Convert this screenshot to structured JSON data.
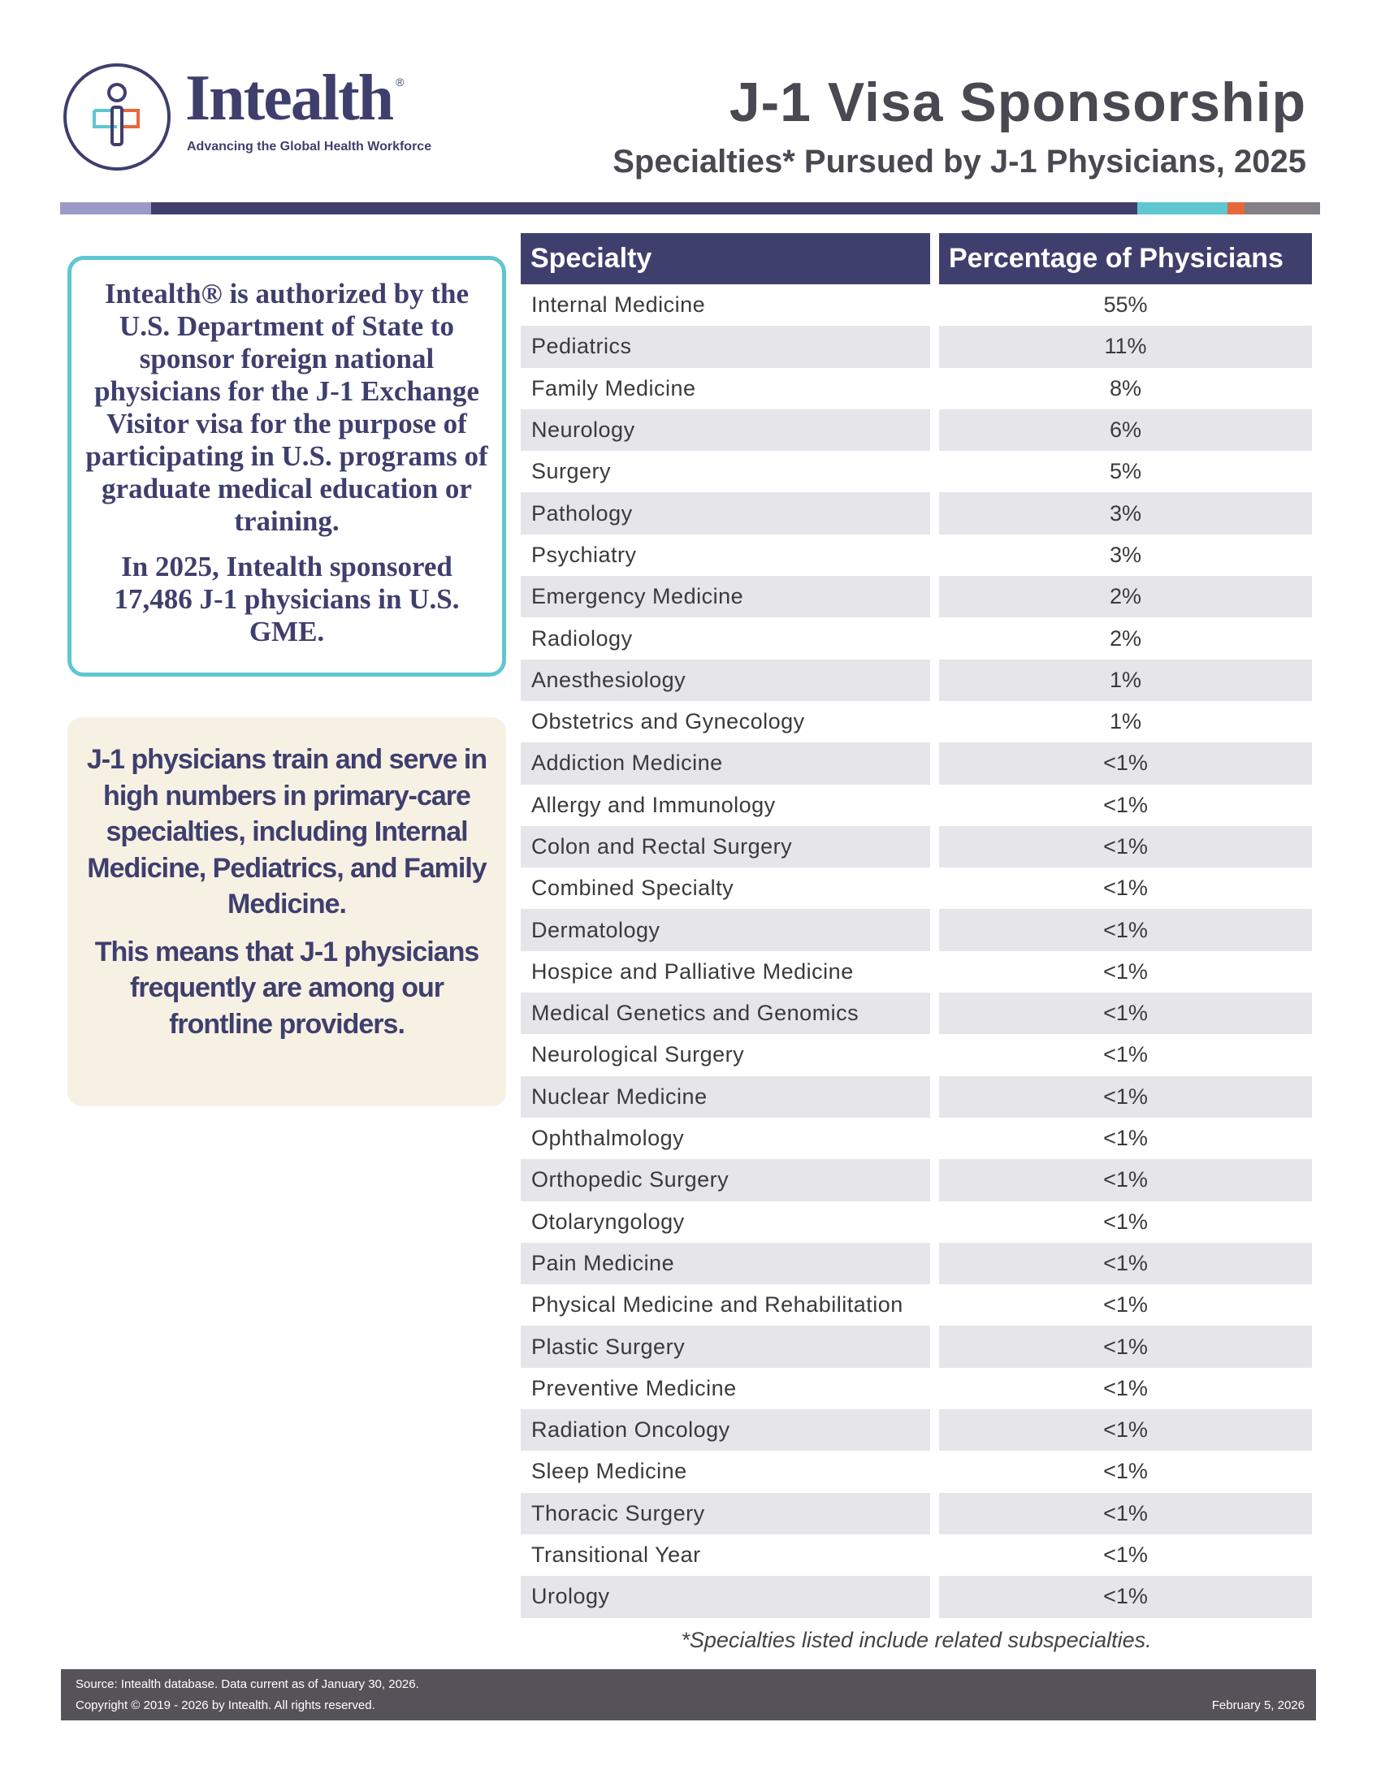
{
  "logo": {
    "name": "Intealth",
    "registered": "®",
    "tagline": "Advancing the Global Health Workforce",
    "colors": {
      "navy": "#3f3f6e",
      "cyan": "#5fc6d2",
      "orange": "#e8673a"
    }
  },
  "header": {
    "title": "J-1 Visa Sponsorship",
    "subtitle": "Specialties* Pursued by J-1 Physicians, 2025"
  },
  "info_box": {
    "paragraph1": "Intealth® is authorized by the U.S. Department of State to sponsor foreign national physicians for the J-1 Exchange Visitor visa for the purpose of participating in U.S. programs of graduate medical education or training.",
    "paragraph2": "In 2025, Intealth sponsored 17,486 J-1 physicians in U.S. GME."
  },
  "highlight_box": {
    "paragraph1": "J-1 physicians train and serve in high numbers in primary-care specialties, including Internal Medicine, Pediatrics, and Family Medicine.",
    "paragraph2": "This means that J-1 physicians frequently are among our frontline providers."
  },
  "table": {
    "headers": [
      "Specialty",
      "Percentage of Physicians"
    ],
    "rows": [
      [
        "Internal Medicine",
        "55%"
      ],
      [
        "Pediatrics",
        "11%"
      ],
      [
        "Family Medicine",
        "8%"
      ],
      [
        "Neurology",
        "6%"
      ],
      [
        "Surgery",
        "5%"
      ],
      [
        "Pathology",
        "3%"
      ],
      [
        "Psychiatry",
        "3%"
      ],
      [
        "Emergency Medicine",
        "2%"
      ],
      [
        "Radiology",
        "2%"
      ],
      [
        "Anesthesiology",
        "1%"
      ],
      [
        "Obstetrics and Gynecology",
        "1%"
      ],
      [
        "Addiction Medicine",
        "<1%"
      ],
      [
        "Allergy and Immunology",
        "<1%"
      ],
      [
        "Colon and Rectal Surgery",
        "<1%"
      ],
      [
        "Combined Specialty",
        "<1%"
      ],
      [
        "Dermatology",
        "<1%"
      ],
      [
        "Hospice and Palliative Medicine",
        "<1%"
      ],
      [
        "Medical Genetics and Genomics",
        "<1%"
      ],
      [
        "Neurological Surgery",
        "<1%"
      ],
      [
        "Nuclear Medicine",
        "<1%"
      ],
      [
        "Ophthalmology",
        "<1%"
      ],
      [
        "Orthopedic Surgery",
        "<1%"
      ],
      [
        "Otolaryngology",
        "<1%"
      ],
      [
        "Pain Medicine",
        "<1%"
      ],
      [
        "Physical Medicine and Rehabilitation",
        "<1%"
      ],
      [
        "Plastic Surgery",
        "<1%"
      ],
      [
        "Preventive Medicine",
        "<1%"
      ],
      [
        "Radiation Oncology",
        "<1%"
      ],
      [
        "Sleep Medicine",
        "<1%"
      ],
      [
        "Thoracic Surgery",
        "<1%"
      ],
      [
        "Transitional Year",
        "<1%"
      ],
      [
        "Urology",
        "<1%"
      ]
    ]
  },
  "footnote": "*Specialties listed include related subspecialties.",
  "footer": {
    "source": "Source: Intealth database. Data current as of January 30, 2026.",
    "copyright": "Copyright © 2019 - 2026 by Intealth. All rights reserved.",
    "date": "February 5, 2026"
  }
}
